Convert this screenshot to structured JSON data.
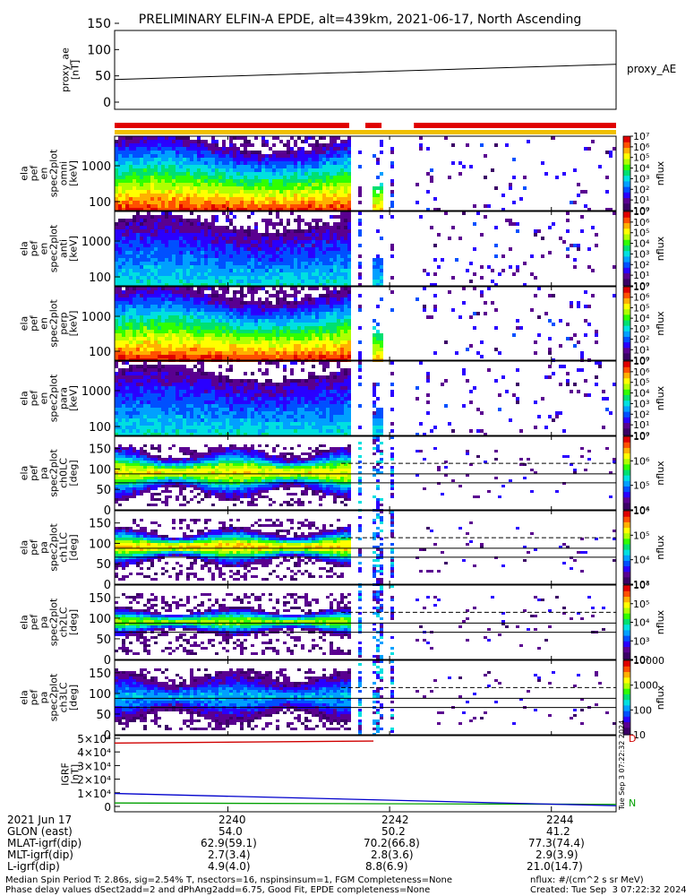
{
  "title": "PRELIMINARY ELFIN-A EPDE, alt=439km, 2021-06-17, North Ascending",
  "colors": {
    "coverage_red": "#e00000",
    "coverage_yellow": "#f0c000",
    "line_red": "#d00000",
    "line_green": "#00a000",
    "line_blue": "#0000cc",
    "colormap": [
      "#3b0066",
      "#5a0090",
      "#2a00ff",
      "#0050ff",
      "#00a0ff",
      "#00e0e0",
      "#00e070",
      "#30ff00",
      "#b0ff00",
      "#ffff00",
      "#ffb000",
      "#ff5000",
      "#e00000"
    ]
  },
  "chart_data": [
    {
      "type": "line",
      "panel": "proxy_ae",
      "ylabel": [
        "proxy_ae",
        "[nT]"
      ],
      "ylim": [
        0,
        150
      ],
      "yticks": [
        "0",
        "50",
        "100",
        "150"
      ],
      "series": [
        {
          "name": "proxy_AE",
          "x": [
            "2238.6",
            "2244.8"
          ],
          "values": [
            43,
            72
          ]
        }
      ]
    },
    {
      "type": "heatmap",
      "panel": "coverage",
      "segments_red": [
        [
          "2238.6",
          "2241.5"
        ],
        [
          "2241.7",
          "2241.9"
        ],
        [
          "2242.3",
          "2244.8"
        ]
      ],
      "segment_yellow": [
        "2238.6",
        "2244.8"
      ]
    },
    {
      "type": "heatmap",
      "panel": "en-omni",
      "ylabel": [
        "ela",
        "pef",
        "en",
        "spec2plot",
        "omni",
        "[keV]"
      ],
      "ytick_labels": [
        "100",
        "1000"
      ],
      "colorbar": {
        "label": "nflux",
        "ticks": [
          "10⁰",
          "10¹",
          "10²",
          "10³",
          "10⁴",
          "10⁵",
          "10⁶",
          "10⁷"
        ]
      }
    },
    {
      "type": "heatmap",
      "panel": "en-anti",
      "ylabel": [
        "ela",
        "pef",
        "en",
        "spec2plot",
        "anti",
        "[keV]"
      ],
      "ytick_labels": [
        "100",
        "1000"
      ],
      "colorbar": {
        "label": "nflux",
        "ticks": [
          "10⁰",
          "10¹",
          "10²",
          "10³",
          "10⁴",
          "10⁵",
          "10⁶",
          "10⁷"
        ]
      }
    },
    {
      "type": "heatmap",
      "panel": "en-perp",
      "ylabel": [
        "ela",
        "pef",
        "en",
        "spec2plot",
        "perp",
        "[keV]"
      ],
      "ytick_labels": [
        "100",
        "1000"
      ],
      "colorbar": {
        "label": "nflux",
        "ticks": [
          "10⁰",
          "10¹",
          "10²",
          "10³",
          "10⁴",
          "10⁵",
          "10⁶",
          "10⁷"
        ]
      }
    },
    {
      "type": "heatmap",
      "panel": "en-para",
      "ylabel": [
        "ela",
        "pef",
        "en",
        "spec2plot",
        "para",
        "[keV]"
      ],
      "ytick_labels": [
        "100",
        "1000"
      ],
      "colorbar": {
        "label": "nflux",
        "ticks": [
          "10⁰",
          "10¹",
          "10²",
          "10³",
          "10⁴",
          "10⁵",
          "10⁶",
          "10⁷"
        ]
      }
    },
    {
      "type": "heatmap",
      "panel": "pa-ch0",
      "ylabel": [
        "ela",
        "pef",
        "pa",
        "spec2plot",
        "ch0LC",
        "[deg]"
      ],
      "ylim": [
        0,
        180
      ],
      "yticks": [
        "0",
        "50",
        "100",
        "150"
      ],
      "colorbar": {
        "label": "nflux",
        "ticks": [
          "10⁴",
          "10⁵",
          "10⁶",
          "10⁷"
        ]
      }
    },
    {
      "type": "heatmap",
      "panel": "pa-ch1",
      "ylabel": [
        "ela",
        "pef",
        "pa",
        "spec2plot",
        "ch1LC",
        "[deg]"
      ],
      "ylim": [
        0,
        180
      ],
      "yticks": [
        "0",
        "50",
        "100",
        "150"
      ],
      "colorbar": {
        "label": "nflux",
        "ticks": [
          "10³",
          "10⁴",
          "10⁵",
          "10⁶"
        ]
      }
    },
    {
      "type": "heatmap",
      "panel": "pa-ch2",
      "ylabel": [
        "ela",
        "pef",
        "pa",
        "spec2plot",
        "ch2LC",
        "[deg]"
      ],
      "ylim": [
        0,
        180
      ],
      "yticks": [
        "0",
        "50",
        "100",
        "150"
      ],
      "colorbar": {
        "label": "nflux",
        "ticks": [
          "10²",
          "10³",
          "10⁴",
          "10⁵",
          "10⁶"
        ]
      }
    },
    {
      "type": "heatmap",
      "panel": "pa-ch3",
      "ylabel": [
        "ela",
        "pef",
        "pa",
        "spec2plot",
        "ch3LC",
        "[deg]"
      ],
      "ylim": [
        0,
        180
      ],
      "yticks": [
        "0",
        "50",
        "100",
        "150"
      ],
      "colorbar": {
        "label": "nflux",
        "ticks": [
          "10",
          "100",
          "1000",
          "10000"
        ]
      }
    },
    {
      "type": "line",
      "panel": "igrf",
      "ylabel": [
        "IGRF",
        "[nT]"
      ],
      "ylim": [
        0,
        50000
      ],
      "yticks": [
        "0",
        "1×10⁴",
        "2×10⁴",
        "3×10⁴",
        "4×10⁴",
        "5×10⁴"
      ],
      "series": [
        {
          "name": "D",
          "x": [
            "2238.6",
            "2241.8"
          ],
          "values": [
            46500,
            48000
          ]
        },
        {
          "name": "N",
          "x": [
            "2238.6",
            "2244.8"
          ],
          "values": [
            2500,
            1500
          ]
        },
        {
          "name": "",
          "x": [
            "2238.6",
            "2244.8"
          ],
          "values": [
            9500,
            500
          ]
        }
      ]
    }
  ],
  "xaxis": {
    "ticks": [
      "2240",
      "2242",
      "2244"
    ],
    "rows": [
      {
        "label": "2021 Jun 17",
        "values": [
          "2240",
          "2242",
          "2244"
        ]
      },
      {
        "label": "GLON (east)",
        "values": [
          "54.0",
          "50.2",
          "41.2"
        ]
      },
      {
        "label": "MLAT-igrf(dip)",
        "values": [
          "62.9(59.1)",
          "70.2(66.8)",
          "77.3(74.4)"
        ]
      },
      {
        "label": "MLT-igrf(dip)",
        "values": [
          "2.7(3.4)",
          "2.8(3.6)",
          "2.9(3.9)"
        ]
      },
      {
        "label": "L-igrf(dip)",
        "values": [
          "4.9(4.0)",
          "8.8(6.9)",
          "21.0(14.7)"
        ]
      }
    ]
  },
  "igrf_legend": [
    "D",
    "N"
  ],
  "side_stamp": "Tue Sep  3 07:22:32 2024",
  "footer": {
    "line1_left": "Median Spin Period T: 2.86s, sig=2.54% T, nsectors=16, nspinsinsum=1, FGM Completeness=None",
    "line2_left": "Phase delay values dSect2add=2 and dPhAng2add=6.75, Good Fit, EPDE completeness=None",
    "line1_right": "nflux: #/(cm^2 s sr MeV)",
    "line2_right": "Created: Tue Sep  3 07:22:32 2024"
  }
}
